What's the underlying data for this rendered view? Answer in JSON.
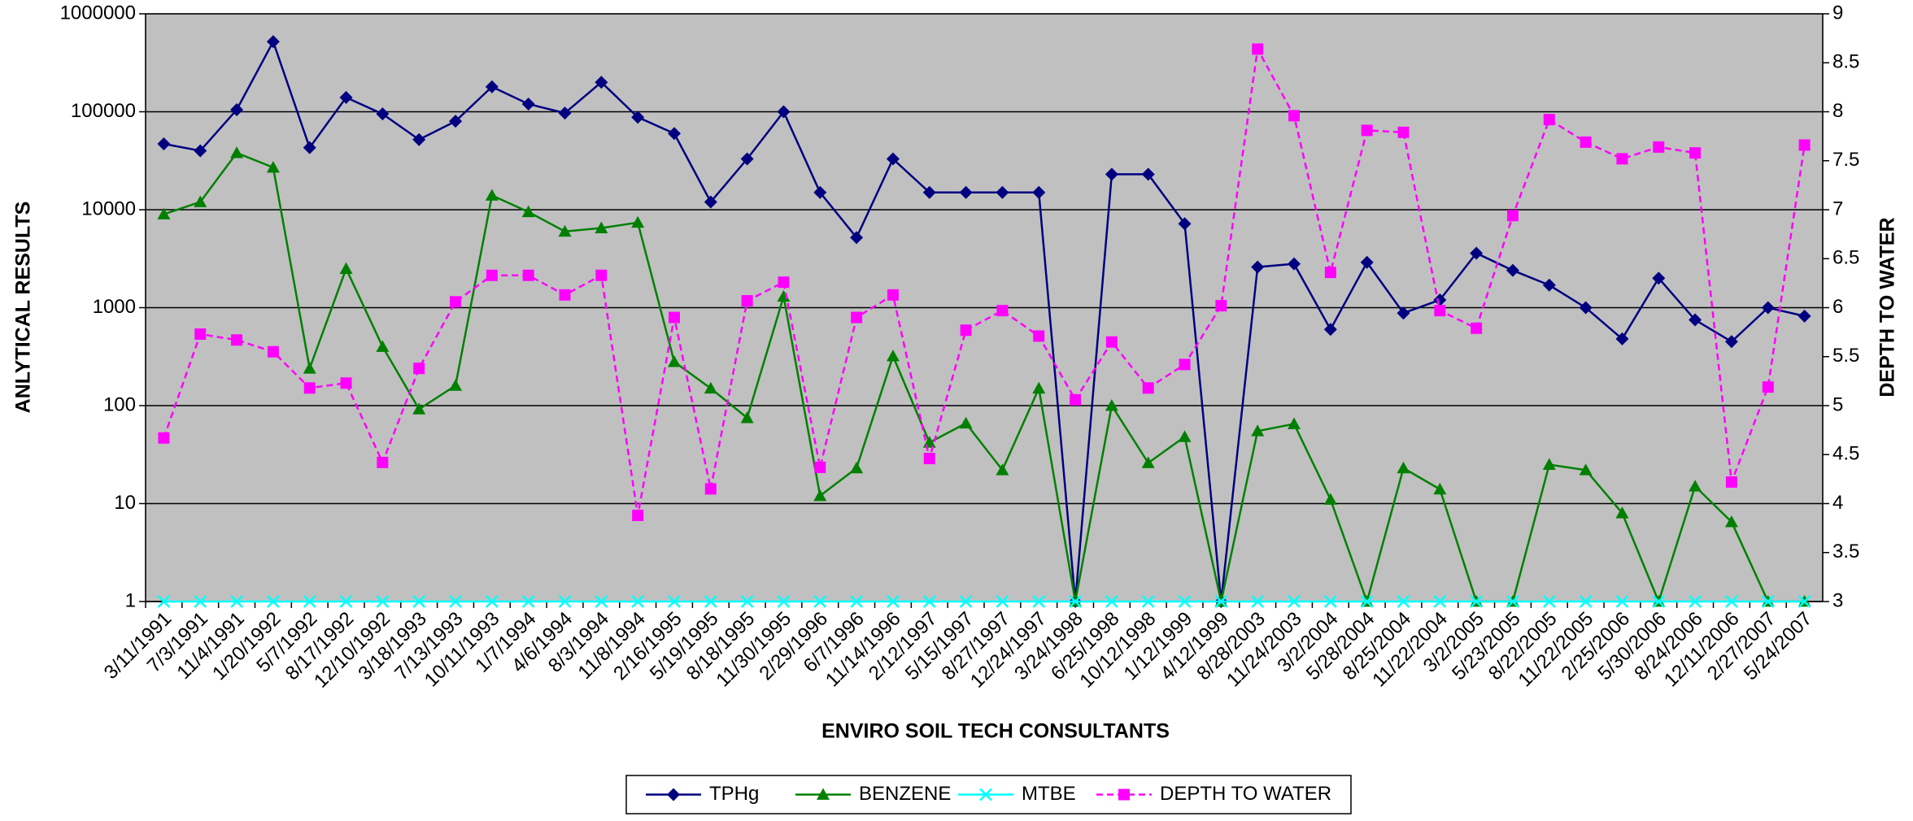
{
  "chart_data": {
    "type": "line",
    "x_label": "ENVIRO SOIL TECH CONSULTANTS",
    "y_label": "ANLYTICAL RESULTS",
    "y2_label": "DEPTH TO WATER",
    "categories": [
      "3/11/1991",
      "7/3/1991",
      "11/4/1991",
      "1/20/1992",
      "5/7/1992",
      "8/17/1992",
      "12/10/1992",
      "3/18/1993",
      "7/13/1993",
      "10/11/1993",
      "1/7/1994",
      "4/6/1994",
      "8/3/1994",
      "11/8/1994",
      "2/16/1995",
      "5/19/1995",
      "8/18/1995",
      "11/30/1995",
      "2/29/1996",
      "6/7/1996",
      "11/14/1996",
      "2/12/1997",
      "5/15/1997",
      "8/27/1997",
      "12/24/1997",
      "3/24/1998",
      "6/25/1998",
      "10/12/1998",
      "1/12/1999",
      "4/12/1999",
      "8/28/2003",
      "11/24/2003",
      "3/2/2004",
      "5/28/2004",
      "8/25/2004",
      "11/22/2004",
      "3/2/2005",
      "5/23/2005",
      "8/22/2005",
      "11/22/2005",
      "2/25/2006",
      "5/30/2006",
      "8/24/2006",
      "12/11/2006",
      "2/27/2007",
      "5/24/2007"
    ],
    "series": [
      {
        "name": "TPHg",
        "color": "#000080",
        "marker": "diamond",
        "dashed": false,
        "values": [
          47000,
          40000,
          105000,
          520000,
          43000,
          140000,
          95000,
          52000,
          80000,
          180000,
          120000,
          97000,
          200000,
          88000,
          60000,
          12000,
          33000,
          100000,
          15000,
          5200,
          33000,
          15000,
          15000,
          15000,
          15000,
          1,
          23000,
          23000,
          7200,
          1,
          2600,
          2800,
          600,
          2900,
          880,
          1200,
          3600,
          2400,
          1700,
          1000,
          480,
          2000,
          750,
          450,
          1000,
          820
        ]
      },
      {
        "name": "BENZENE",
        "color": "#008000",
        "marker": "triangle",
        "dashed": false,
        "values": [
          9000,
          12000,
          38000,
          27000,
          240,
          2500,
          400,
          92,
          160,
          14000,
          9500,
          6000,
          6500,
          7400,
          280,
          150,
          75,
          1300,
          12,
          23,
          320,
          42,
          66,
          22,
          150,
          1,
          100,
          26,
          48,
          1,
          55,
          65,
          11,
          1,
          23,
          14,
          1,
          1,
          25,
          22,
          8,
          1,
          15,
          6.5,
          1,
          1
        ]
      },
      {
        "name": "MTBE",
        "color": "#00FFFF",
        "marker": "x",
        "dashed": false,
        "values": [
          1,
          1,
          1,
          1,
          1,
          1,
          1,
          1,
          1,
          1,
          1,
          1,
          1,
          1,
          1,
          1,
          1,
          1,
          1,
          1,
          1,
          1,
          1,
          1,
          1,
          1,
          1,
          1,
          1,
          1,
          1,
          1,
          1,
          1,
          1,
          1,
          1,
          1,
          1,
          1,
          1,
          1,
          1,
          1,
          1,
          1
        ]
      },
      {
        "name": "DEPTH TO WATER",
        "color": "#FF00FF",
        "marker": "square",
        "dashed": true,
        "axis": "y2",
        "values": [
          4.67,
          5.73,
          5.67,
          5.55,
          5.18,
          5.23,
          4.42,
          5.38,
          6.06,
          6.33,
          6.33,
          6.13,
          6.33,
          3.88,
          5.9,
          4.15,
          6.07,
          6.26,
          4.37,
          5.9,
          6.13,
          4.46,
          5.77,
          5.97,
          5.71,
          5.06,
          5.65,
          5.18,
          5.42,
          6.02,
          8.64,
          7.96,
          6.36,
          7.81,
          7.79,
          5.97,
          5.79,
          6.94,
          7.92,
          7.69,
          7.52,
          7.64,
          7.58,
          4.22,
          5.19,
          7.66
        ]
      }
    ],
    "ylim": [
      1,
      1000000
    ],
    "yticks": [
      1,
      10,
      100,
      1000,
      10000,
      100000,
      1000000
    ],
    "y_log": true,
    "y2lim": [
      3,
      9
    ],
    "y2ticks": [
      3,
      3.5,
      4,
      4.5,
      5,
      5.5,
      6,
      6.5,
      7,
      7.5,
      8,
      8.5,
      9
    ],
    "grid": true,
    "legend": "bottom"
  }
}
